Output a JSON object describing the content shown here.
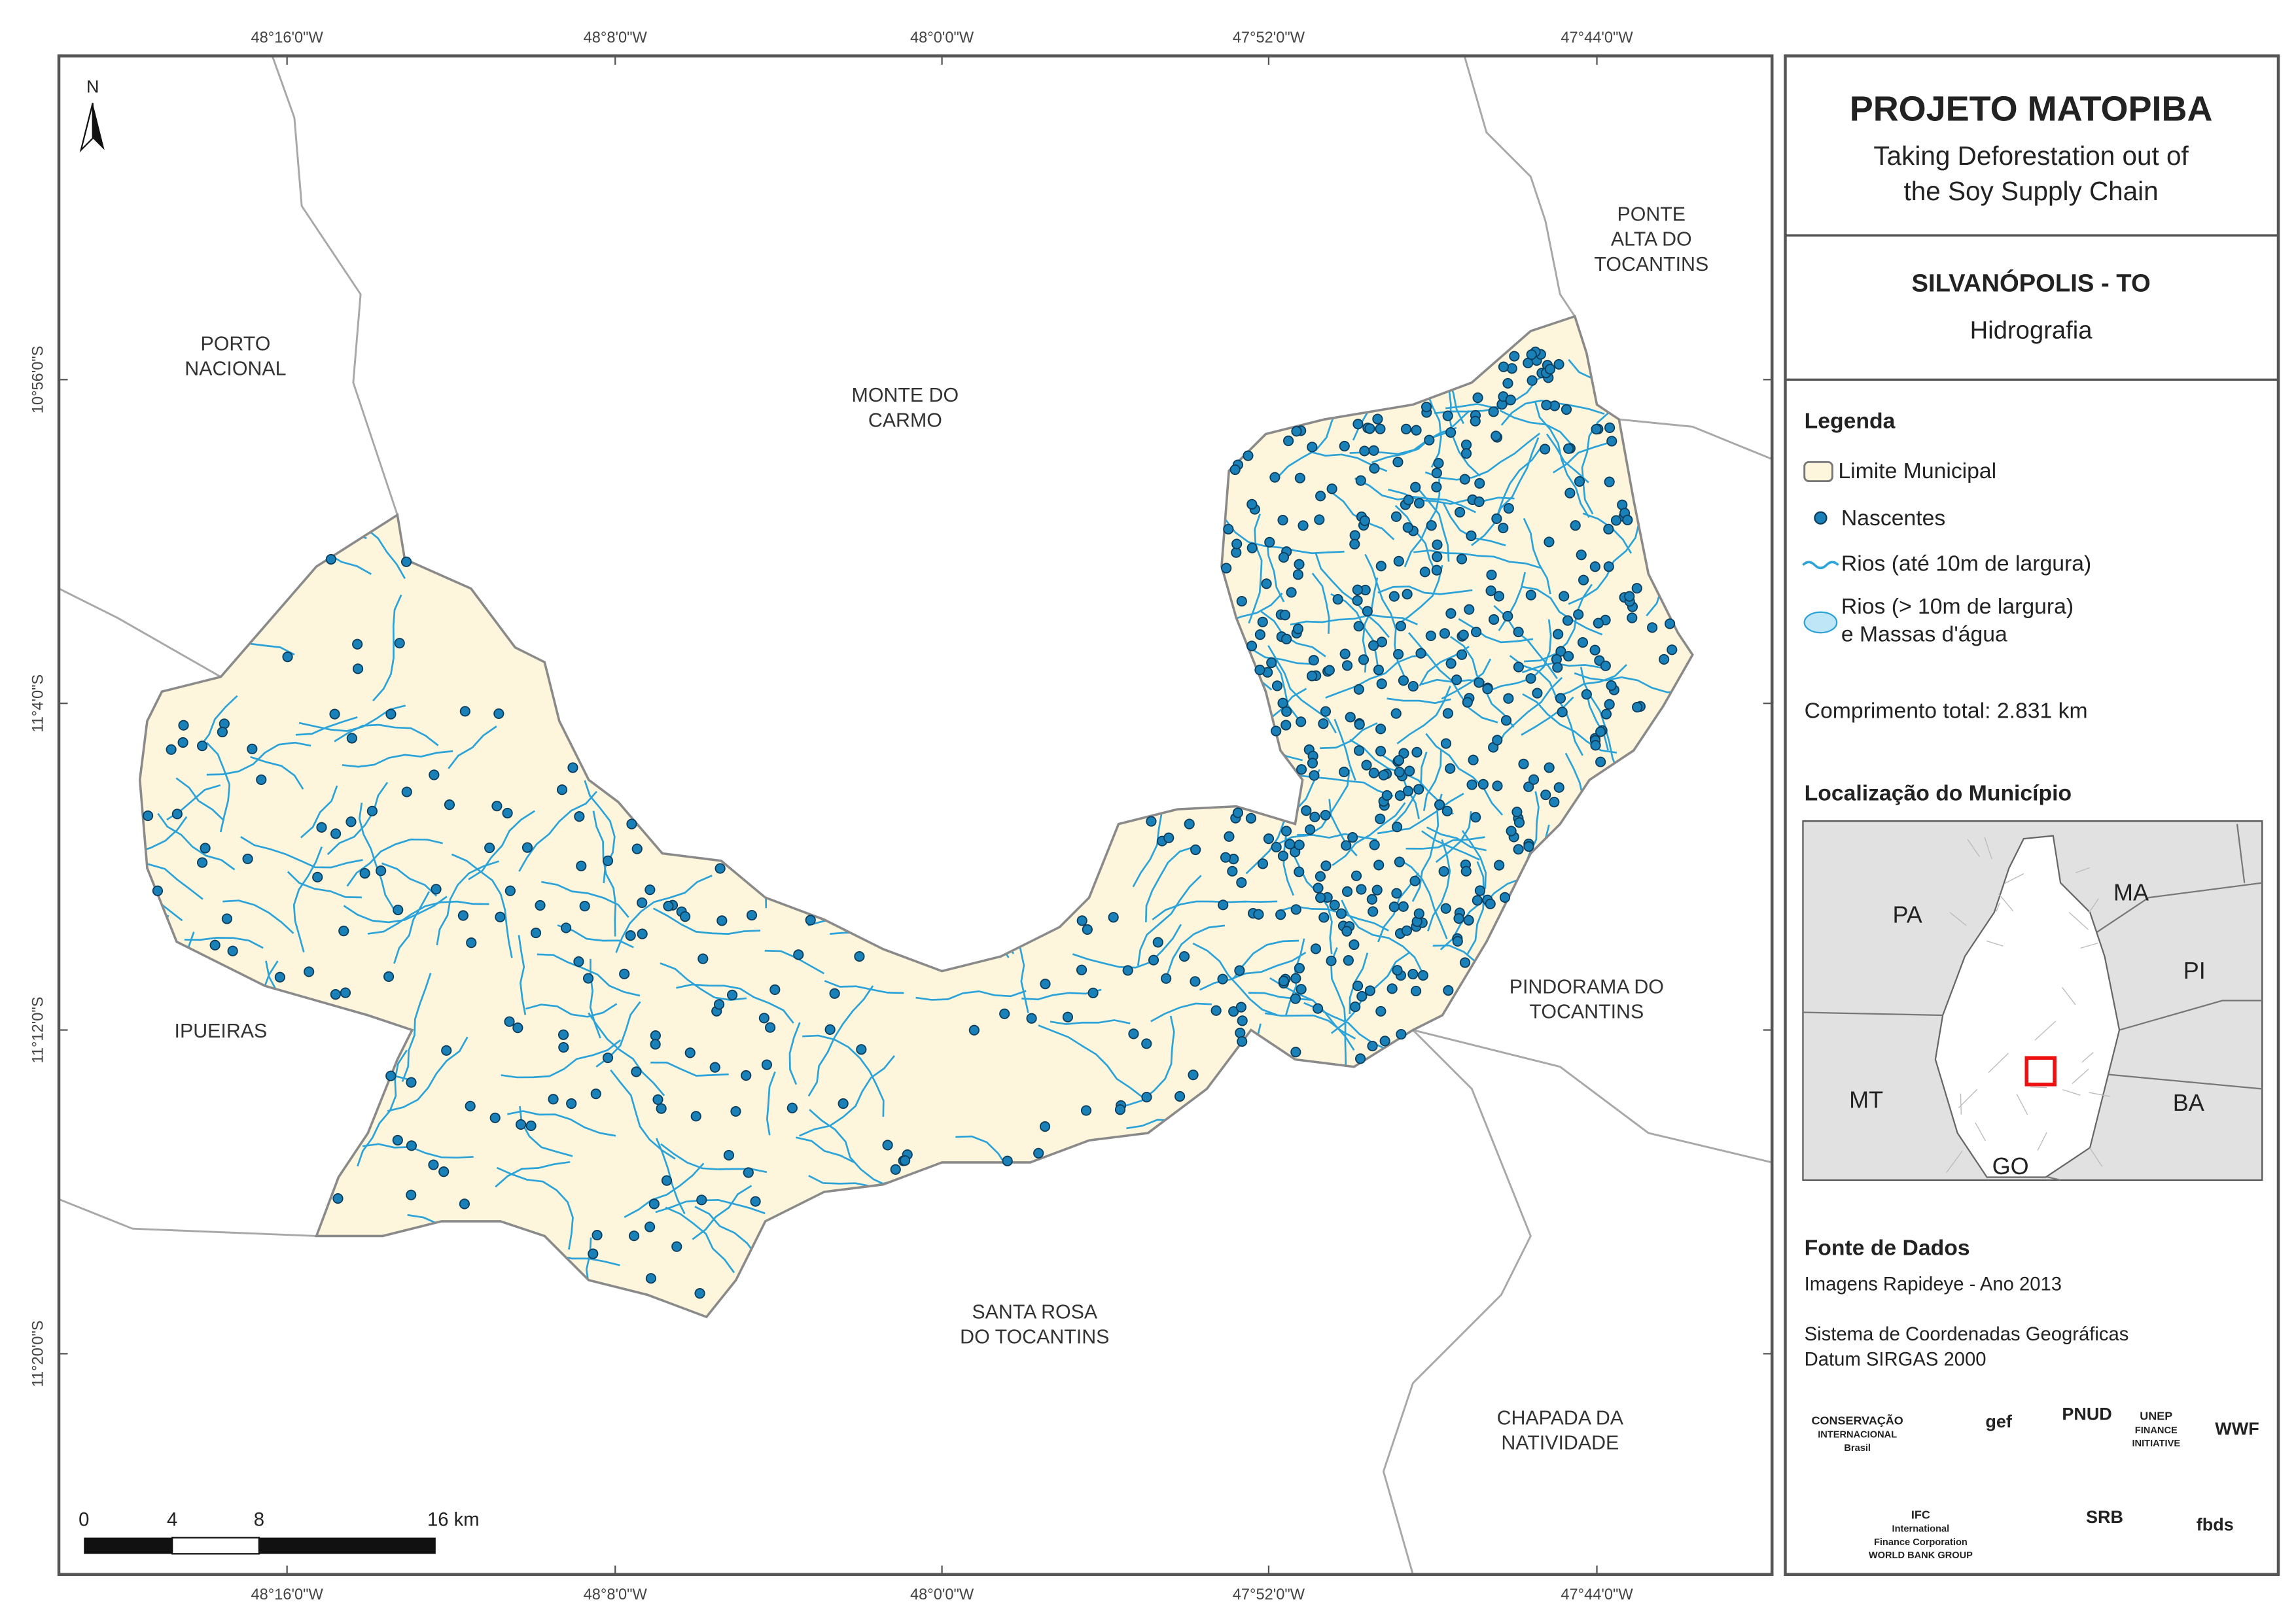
{
  "header": {
    "title": "PROJETO MATOPIBA",
    "subtitle_lines": [
      "Taking Deforestation out of",
      "the Soy Supply Chain"
    ]
  },
  "map_title": {
    "municipality": "SILVANÓPOLIS - TO",
    "theme": "Hidrografia"
  },
  "legend": {
    "title": "Legenda",
    "items": [
      [
        "Limite Municipal"
      ],
      [
        "Nascentes"
      ],
      [
        "Rios (até 10m de largura)"
      ],
      [
        "Rios (> 10m de largura)",
        "e Massas d'água"
      ]
    ],
    "total_length": "Comprimento total: 2.831 km"
  },
  "location": {
    "title": "Localização do Município",
    "states": [
      "PA",
      "MA",
      "PI",
      "MT",
      "BA",
      "GO"
    ]
  },
  "sources": {
    "title": "Fonte de Dados",
    "lines": [
      "Imagens Rapideye - Ano 2013",
      "Sistema de Coordenadas Geográficas",
      "Datum SIRGAS 2000"
    ]
  },
  "map": {
    "north": "N",
    "x_coords": [
      "48°16'0\"W",
      "48°8'0\"W",
      "48°0'0\"W",
      "47°52'0\"W",
      "47°44'0\"W"
    ],
    "y_coords": [
      "10°56'0\"S",
      "11°4'0\"S",
      "11°12'0\"S",
      "11°20'0\"S"
    ],
    "places": [
      [
        "PORTO",
        "NACIONAL"
      ],
      [
        "MONTE DO",
        "CARMO"
      ],
      [
        "PONTE",
        "ALTA DO",
        "TOCANTINS"
      ],
      [
        "IPUEIRAS"
      ],
      [
        "PINDORAMA DO",
        "TOCANTINS"
      ],
      [
        "SANTA ROSA",
        "DO TOCANTINS"
      ],
      [
        "CHAPADA DA",
        "NATIVIDADE"
      ]
    ],
    "scale": [
      "0",
      "4",
      "8",
      "16 km"
    ]
  },
  "logos": [
    [
      "CONSERVAÇÃO",
      "INTERNACIONAL",
      "Brasil"
    ],
    [
      "gef"
    ],
    [
      "PNUD"
    ],
    [
      "UNEP",
      "FINANCE",
      "INITIATIVE"
    ],
    [
      "WWF"
    ],
    [
      "IFC",
      "International",
      "Finance Corporation",
      "WORLD BANK GROUP"
    ],
    [
      "SRB"
    ],
    [
      "fbds"
    ]
  ]
}
